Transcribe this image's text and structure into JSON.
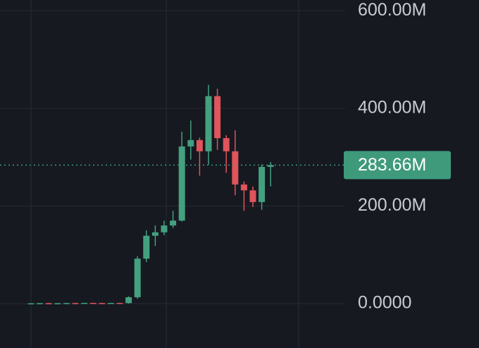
{
  "chart_data": {
    "type": "candlestick",
    "categories": [
      null,
      null,
      null,
      null,
      null,
      null,
      null,
      null,
      null,
      null,
      null,
      null,
      null,
      null,
      null,
      null,
      null,
      null,
      null,
      null,
      null,
      null,
      null,
      null,
      null,
      null,
      null,
      null
    ],
    "series": [
      {
        "open": [
          300000,
          600000,
          900000,
          500000,
          800000,
          1100000,
          1000000,
          1400000,
          1100000,
          900000,
          1300000,
          1000000,
          13000000,
          92000000,
          139000000,
          146000000,
          160000000,
          170000000,
          322000000,
          335000000,
          312000000,
          425000000,
          339000000,
          312000000,
          244000000,
          232000000,
          208000000,
          280000000
        ],
        "high": [
          900000,
          1200000,
          1500000,
          1200000,
          1500000,
          1800000,
          1800000,
          2000000,
          1800000,
          1600000,
          1800000,
          15000000,
          97000000,
          150000000,
          160000000,
          170000000,
          190000000,
          352000000,
          375000000,
          340000000,
          448000000,
          440000000,
          345000000,
          355000000,
          250000000,
          240000000,
          285000000,
          290000000
        ],
        "low": [
          0,
          100000,
          300000,
          200000,
          300000,
          600000,
          500000,
          800000,
          600000,
          400000,
          700000,
          0,
          10000000,
          85000000,
          118000000,
          140000000,
          155000000,
          168000000,
          295000000,
          262000000,
          285000000,
          315000000,
          268000000,
          222000000,
          190000000,
          198000000,
          192000000,
          240000000
        ],
        "close": [
          600000,
          900000,
          500000,
          800000,
          1100000,
          1000000,
          1400000,
          1100000,
          900000,
          1300000,
          1000000,
          13000000,
          92000000,
          139000000,
          146000000,
          160000000,
          170000000,
          322000000,
          335000000,
          312000000,
          425000000,
          339000000,
          312000000,
          244000000,
          232000000,
          208000000,
          280000000,
          283660000
        ],
        "up_color": "#44a07f",
        "down_color": "#e0545b"
      }
    ],
    "ylim": [
      -91000000,
      622000000
    ],
    "yticks": [
      {
        "value": 0,
        "label": "0.0000"
      },
      {
        "value": 200000000,
        "label": "200.00M"
      },
      {
        "value": 400000000,
        "label": "400.00M"
      },
      {
        "value": 600000000,
        "label": "600.00M"
      }
    ],
    "grid": true,
    "price_line": {
      "value": 283660000,
      "label": "283.66M",
      "color": "#3f9a7c"
    }
  }
}
